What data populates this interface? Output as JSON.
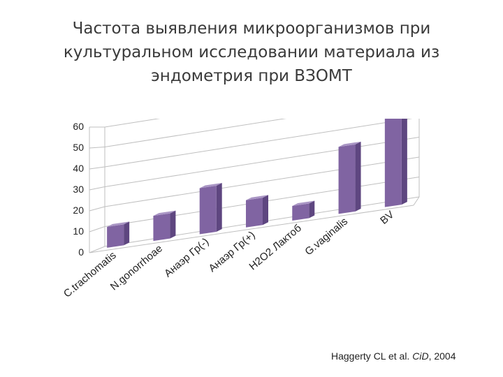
{
  "slide": {
    "title_lines": [
      "Частота выявления микроорганизмов при",
      "культуральном исследовании материала из",
      "эндометрия при ВЗОМТ"
    ],
    "citation": {
      "authors": "Haggerty CL et al.",
      "journal": "CiD",
      "year": ", 2004"
    }
  },
  "chart_data": {
    "type": "bar",
    "style": "3d",
    "categories": [
      "C.trachomatis",
      "N.gonorrhoae",
      "Анаэр Гр(-)",
      "Анаэр Гр(+)",
      "H2O2 Лактоб",
      "G.vaginalis",
      "BV"
    ],
    "values": [
      10,
      12,
      22,
      13,
      7,
      32,
      53
    ],
    "ylim": [
      0,
      60
    ],
    "yticks": [
      0,
      10,
      20,
      30,
      40,
      50,
      60
    ],
    "grid": true,
    "legend": "none",
    "bar_color": "#8064a2",
    "bar_top_color": "#a995c4",
    "bar_side_color": "#5e4680",
    "grid_color": "#bfbfbf"
  }
}
